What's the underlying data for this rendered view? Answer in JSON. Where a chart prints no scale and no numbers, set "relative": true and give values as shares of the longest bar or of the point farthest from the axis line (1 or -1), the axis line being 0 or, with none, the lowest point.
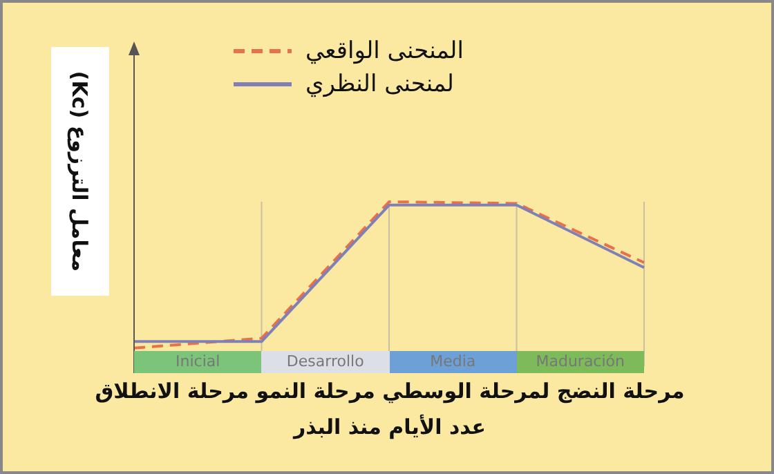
{
  "chart_data": {
    "type": "line",
    "relative": true,
    "ylabel": "معامل الترزوع (Kc)",
    "xlabel": "عدد الأيام منذ البذر",
    "categories": [
      null,
      null,
      null,
      null,
      null
    ],
    "series": [
      {
        "name": "المنحنى الواقعي",
        "color": "#e8704a",
        "line_style": "dashed",
        "values": [
          0.11,
          0.17,
          1,
          0.99,
          0.63
        ]
      },
      {
        "name": "لمنحنى النظري",
        "color": "#8080b8",
        "line_style": "solid",
        "values": [
          0.15,
          0.15,
          0.98,
          0.98,
          0.6
        ]
      }
    ],
    "grid": "x",
    "legend": "top",
    "marker": "none",
    "annotations": [
      "Inicial",
      "Desarrollo",
      "Media",
      "Maduración",
      "مرحلة النضج لمرحلة الوسطي مرحلة النمو مرحلة الانطلاق"
    ]
  }
}
